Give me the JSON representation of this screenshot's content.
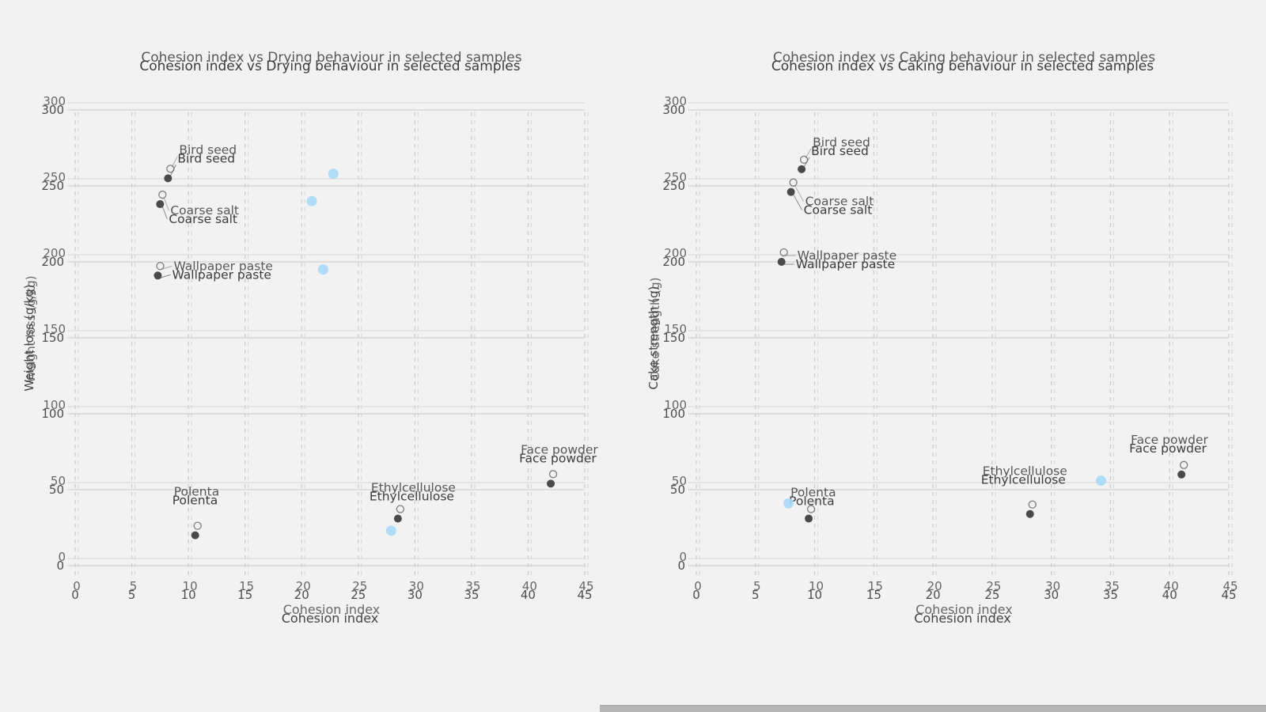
{
  "page": {
    "background_color": "#f2f2f2",
    "bottom_bar_color": "#b5b5b5"
  },
  "colors": {
    "dark_marker": "#4a4a4a",
    "blue_marker": "#a8d9f7",
    "grid_dashed": "#c9c9c9",
    "grid_solid": "#d2d2d2",
    "text": "#3c3c3c"
  },
  "chart_data": [
    {
      "type": "scatter",
      "title": "Cohesion index vs Drying behaviour in selected samples",
      "xlabel": "Cohesion index",
      "ylabel": "Weight loss (g/kg)",
      "xlim": [
        0,
        45
      ],
      "ylim": [
        0,
        300
      ],
      "xticks": [
        0,
        5,
        10,
        15,
        20,
        25,
        30,
        35,
        40,
        45
      ],
      "yticks": [
        0,
        50,
        100,
        150,
        200,
        250,
        300
      ],
      "grid": "vertical-dashed, horizontal-solid",
      "legend": "none",
      "series": [
        {
          "name": "labeled samples",
          "marker": "circle",
          "color": "#4a4a4a",
          "points": [
            {
              "x": 8.2,
              "y": 255,
              "label": "Bird seed"
            },
            {
              "x": 7.5,
              "y": 238,
              "label": "Coarse salt"
            },
            {
              "x": 7.3,
              "y": 191,
              "label": "Wallpaper paste"
            },
            {
              "x": 10.6,
              "y": 20,
              "label": "Polenta"
            },
            {
              "x": 28.5,
              "y": 31,
              "label": "Ethylcellulose"
            },
            {
              "x": 42.0,
              "y": 54,
              "label": "Face powder"
            }
          ]
        },
        {
          "name": "unlabeled points",
          "marker": "circle",
          "color": "#a8d9f7",
          "points": [
            {
              "x": 22.8,
              "y": 258
            },
            {
              "x": 20.9,
              "y": 240
            },
            {
              "x": 21.9,
              "y": 195
            },
            {
              "x": 27.9,
              "y": 23
            }
          ]
        }
      ]
    },
    {
      "type": "scatter",
      "title": "Cohesion index vs Caking behaviour in selected samples",
      "xlabel": "Cohesion index",
      "ylabel": "Cake strength (g)",
      "xlim": [
        0,
        45
      ],
      "ylim": [
        0,
        300
      ],
      "xticks": [
        0,
        5,
        10,
        15,
        20,
        25,
        30,
        35,
        40,
        45
      ],
      "yticks": [
        0,
        50,
        100,
        150,
        200,
        250,
        300
      ],
      "grid": "vertical-dashed, horizontal-solid",
      "legend": "none",
      "series": [
        {
          "name": "labeled samples",
          "marker": "circle",
          "color": "#4a4a4a",
          "points": [
            {
              "x": 8.9,
              "y": 261,
              "label": "Bird seed"
            },
            {
              "x": 8.0,
              "y": 246,
              "label": "Coarse salt"
            },
            {
              "x": 7.2,
              "y": 200,
              "label": "Wallpaper paste"
            },
            {
              "x": 9.5,
              "y": 31,
              "label": "Polenta"
            },
            {
              "x": 28.2,
              "y": 34,
              "label": "Ethylcellulose"
            },
            {
              "x": 41.0,
              "y": 60,
              "label": "Face powder"
            }
          ]
        },
        {
          "name": "unlabeled points",
          "marker": "circle",
          "color": "#a8d9f7",
          "points": [
            {
              "x": 7.8,
              "y": 41
            },
            {
              "x": 34.2,
              "y": 56
            }
          ]
        }
      ]
    }
  ]
}
